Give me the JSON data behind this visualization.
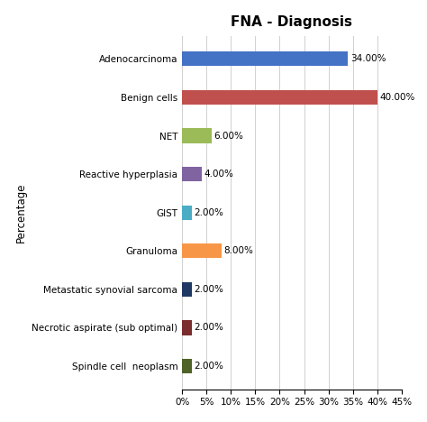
{
  "title": "FNA - Diagnosis",
  "categories": [
    "Adenocarcinoma",
    "Benign cells",
    "NET",
    "Reactive hyperplasia",
    "GIST",
    "Granuloma",
    "Metastatic synovial sarcoma",
    "Necrotic aspirate (sub optimal)",
    "Spindle cell  neoplasm"
  ],
  "values": [
    34,
    40,
    6,
    4,
    2,
    8,
    2,
    2,
    2
  ],
  "colors": [
    "#4472C4",
    "#C0504D",
    "#9BBB59",
    "#8064A2",
    "#4BACC6",
    "#F79646",
    "#1F3864",
    "#7B2C2C",
    "#4F6228"
  ],
  "labels": [
    "34.00%",
    "40.00%",
    "6.00%",
    "4.00%",
    "2.00%",
    "8.00%",
    "2.00%",
    "2.00%",
    "2.00%"
  ],
  "ylabel": "Percentage",
  "xlim": [
    0,
    45
  ],
  "xticks": [
    0,
    5,
    10,
    15,
    20,
    25,
    30,
    35,
    40,
    45
  ],
  "background_color": "#ffffff",
  "grid_color": "#d0d0d0",
  "title_fontsize": 11,
  "label_fontsize": 7.5,
  "tick_fontsize": 7.5,
  "ylabel_fontsize": 8.5,
  "bar_height": 0.38
}
